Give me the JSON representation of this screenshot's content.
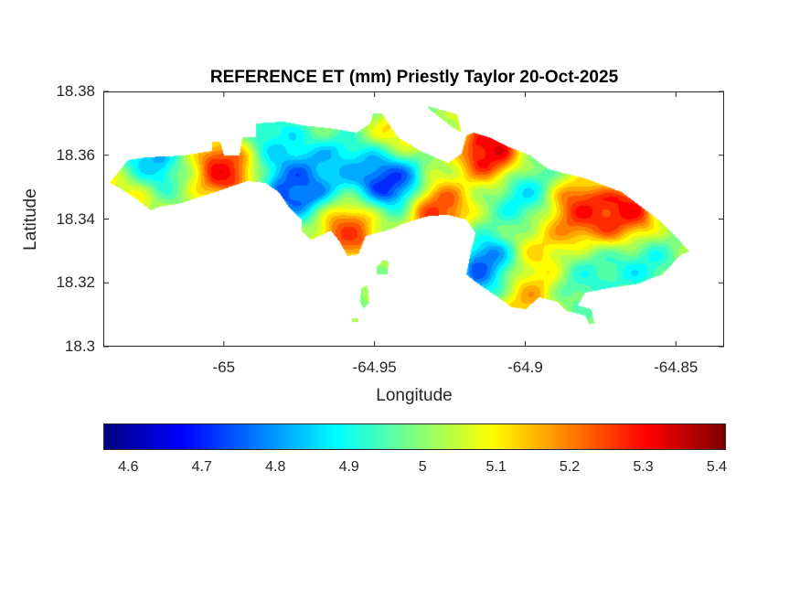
{
  "chart_data": {
    "type": "heatmap",
    "title": "REFERENCE ET (mm) Priestly Taylor 20-Oct-2025",
    "xlabel": "Longitude",
    "ylabel": "Latitude",
    "xlim": [
      -65.04,
      -64.834
    ],
    "ylim": [
      18.3,
      18.38
    ],
    "xticks": [
      -65,
      -64.95,
      -64.9,
      -64.85
    ],
    "xtick_labels": [
      "-65",
      "-64.95",
      "-64.9",
      "-64.85"
    ],
    "yticks": [
      18.38,
      18.36,
      18.34,
      18.32,
      18.3
    ],
    "ytick_labels": [
      "18.38",
      "18.36",
      "18.34",
      "18.32",
      "18.3"
    ],
    "colormap": "jet",
    "colorbar": {
      "location": "bottom",
      "clim": [
        4.566,
        5.41
      ],
      "ticks": [
        4.6,
        4.7,
        4.8,
        4.9,
        5.0,
        5.1,
        5.2,
        5.3,
        5.4
      ],
      "tick_labels": [
        "4.6",
        "4.7",
        "4.8",
        "4.9",
        "5",
        "5.1",
        "5.2",
        "5.3",
        "5.4"
      ]
    },
    "background_value": 5.0,
    "hotspots": [
      {
        "lon": -65.026,
        "lat": 18.3565,
        "value": 4.72
      },
      {
        "lon": -65.032,
        "lat": 18.3485,
        "value": 5.22
      },
      {
        "lon": -65.0,
        "lat": 18.3556,
        "value": 5.36
      },
      {
        "lon": -64.983,
        "lat": 18.364,
        "value": 4.85
      },
      {
        "lon": -64.976,
        "lat": 18.35,
        "value": 4.66
      },
      {
        "lon": -64.9445,
        "lat": 18.3533,
        "value": 4.58
      },
      {
        "lon": -64.962,
        "lat": 18.357,
        "value": 4.82
      },
      {
        "lon": -64.941,
        "lat": 18.3657,
        "value": 5.2
      },
      {
        "lon": -64.959,
        "lat": 18.3356,
        "value": 5.3
      },
      {
        "lon": -64.929,
        "lat": 18.3427,
        "value": 5.32
      },
      {
        "lon": -64.912,
        "lat": 18.3614,
        "value": 5.4
      },
      {
        "lon": -64.9,
        "lat": 18.347,
        "value": 4.83
      },
      {
        "lon": -64.883,
        "lat": 18.3427,
        "value": 5.34
      },
      {
        "lon": -64.867,
        "lat": 18.3413,
        "value": 5.38
      },
      {
        "lon": -64.912,
        "lat": 18.3247,
        "value": 4.66
      },
      {
        "lon": -64.895,
        "lat": 18.331,
        "value": 5.15
      },
      {
        "lon": -64.862,
        "lat": 18.327,
        "value": 4.86
      },
      {
        "lon": -64.9015,
        "lat": 18.317,
        "value": 5.22
      },
      {
        "lon": -64.88,
        "lat": 18.322,
        "value": 4.9
      }
    ]
  }
}
